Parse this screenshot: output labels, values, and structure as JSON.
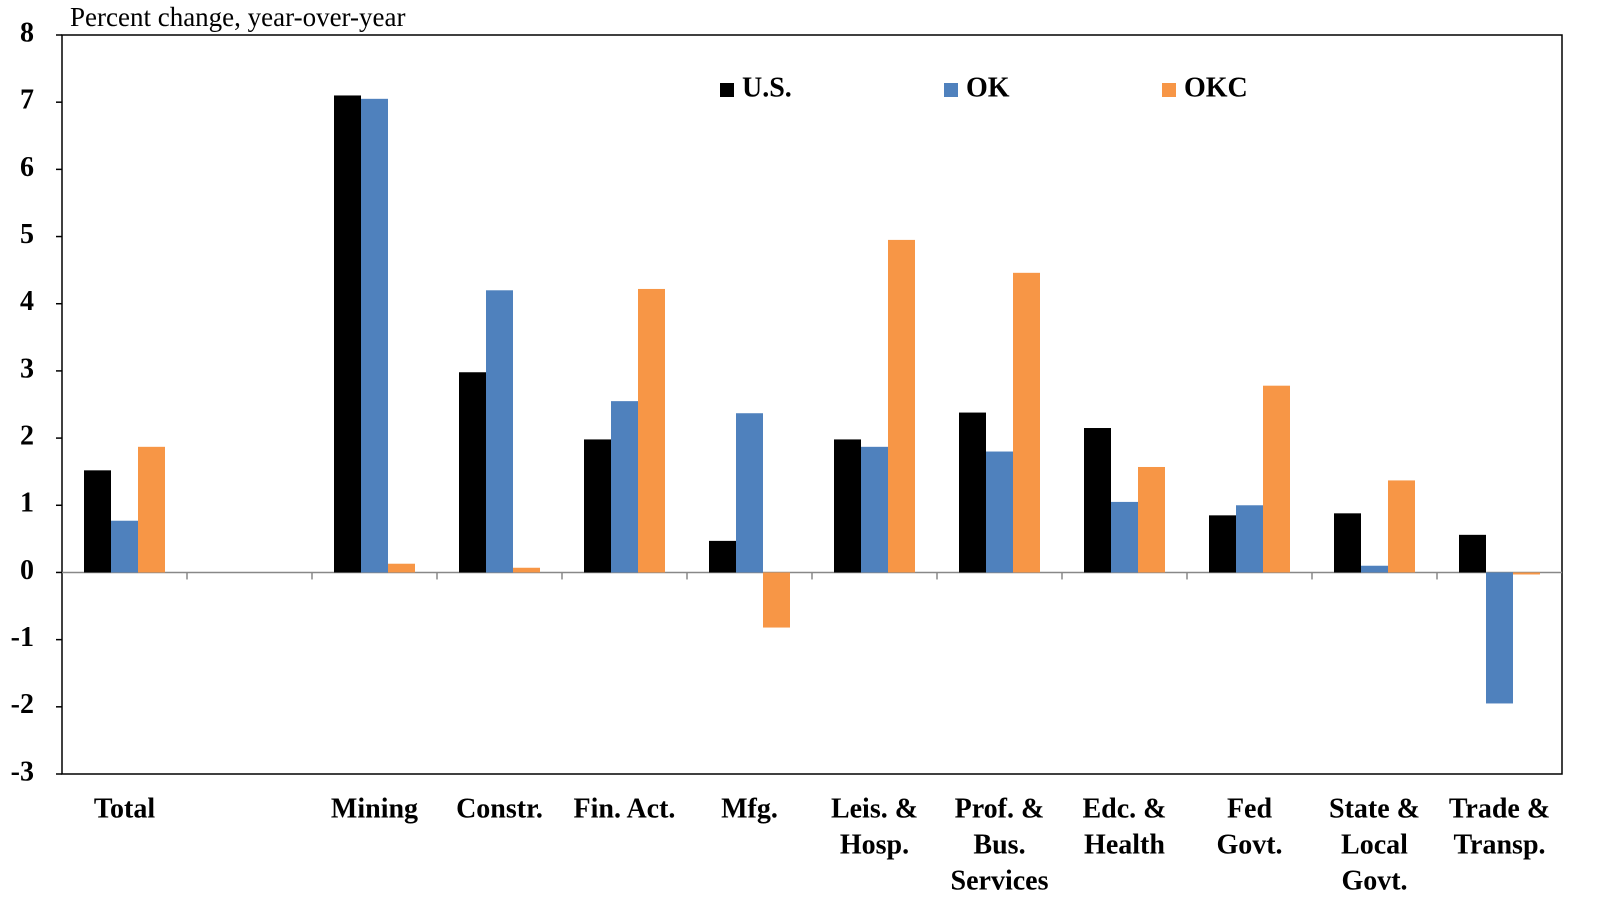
{
  "chart_data": {
    "type": "bar",
    "y_axis_label": "Percent change,  year-over-year",
    "categories": [
      [
        "Total"
      ],
      null,
      [
        "Mining"
      ],
      [
        "Constr."
      ],
      [
        "Fin. Act."
      ],
      [
        "Mfg."
      ],
      [
        "Leis. &",
        "Hosp."
      ],
      [
        "Prof. &",
        "Bus.",
        "Services"
      ],
      [
        "Edc. &",
        "Health"
      ],
      [
        "Fed",
        "Govt."
      ],
      [
        "State &",
        "Local",
        "Govt."
      ],
      [
        "Trade &",
        "Transp."
      ]
    ],
    "series": [
      {
        "name": "U.S.",
        "color": "#000000",
        "values": [
          1.52,
          null,
          7.1,
          2.98,
          1.98,
          0.47,
          1.98,
          2.38,
          2.15,
          0.85,
          0.88,
          0.56
        ]
      },
      {
        "name": "OK",
        "color": "#4f81bd",
        "values": [
          0.77,
          null,
          7.05,
          4.2,
          2.55,
          2.37,
          1.87,
          1.8,
          1.05,
          1.0,
          0.1,
          -1.95
        ]
      },
      {
        "name": "OKC",
        "color": "#f79646",
        "values": [
          1.87,
          null,
          0.13,
          0.07,
          4.22,
          -0.82,
          4.95,
          4.46,
          1.57,
          2.78,
          1.37,
          -0.03
        ]
      }
    ],
    "ylim": [
      -3,
      8
    ],
    "yticks": [
      -3,
      -2,
      -1,
      0,
      1,
      2,
      3,
      4,
      5,
      6,
      7,
      8
    ],
    "legend": "top"
  }
}
